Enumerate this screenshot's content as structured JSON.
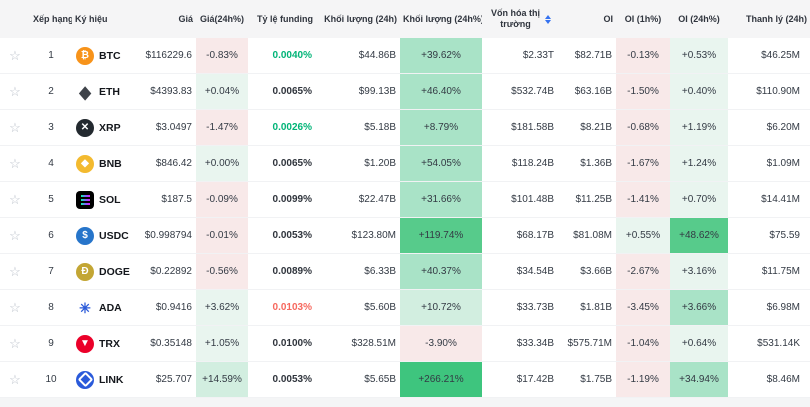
{
  "icons": {
    "star_glyph": "☆"
  },
  "table": {
    "palette": {
      "r1": "#f8e9e9",
      "g1": "#e9f5ef",
      "g2": "#d2eee0",
      "g3": "#a9e3c7",
      "g4": "#57cb8b",
      "g5": "#3ec57e",
      "fundingGreen": "#00b477",
      "fundingRed": "#f6685e",
      "fundingDefault": "#2f343c",
      "sortBlue": "#3572f0"
    },
    "columns": [
      {
        "key": "fav",
        "label": "",
        "align": "ac"
      },
      {
        "key": "rank",
        "label": "Xếp hạng",
        "align": "ac"
      },
      {
        "key": "symbol",
        "label": "Ký hiệu",
        "align": "al"
      },
      {
        "key": "price",
        "label": "Giá",
        "align": "ar"
      },
      {
        "key": "chg24h",
        "label": "Giá(24h%)",
        "align": "ac"
      },
      {
        "key": "funding",
        "label": "Tỷ lệ funding",
        "align": "ar"
      },
      {
        "key": "vol",
        "label": "Khối lượng (24h)",
        "align": "ar"
      },
      {
        "key": "volPct",
        "label": "Khối lượng (24h%)",
        "align": "ac"
      },
      {
        "key": "mcap",
        "label": "Vốn hóa thị trường",
        "align": "ac",
        "sortable": true
      },
      {
        "key": "oi",
        "label": "OI",
        "align": "ar"
      },
      {
        "key": "oi1h",
        "label": "OI (1h%)",
        "align": "ac"
      },
      {
        "key": "oi24h",
        "label": "OI (24h%)",
        "align": "ac"
      },
      {
        "key": "liq",
        "label": "Thanh lý (24h)",
        "align": "ar"
      }
    ],
    "rows": [
      {
        "rank": "1",
        "symbol": "BTC",
        "icon": {
          "name": "btc-icon",
          "type": "glyph",
          "bg": "#F7931A",
          "fg": "#FFFFFF",
          "glyph": "₿"
        },
        "price": "$116229.6",
        "chg24h": {
          "text": "-0.83%",
          "tint": "r1"
        },
        "funding": {
          "text": "0.0040%",
          "color": "green"
        },
        "vol": "$44.86B",
        "volPct": {
          "text": "+39.62%",
          "tint": "g3"
        },
        "mcap": "$2.33T",
        "oi": "$82.71B",
        "oi1h": {
          "text": "-0.13%",
          "tint": "r1"
        },
        "oi24h": {
          "text": "+0.53%",
          "tint": "g1"
        },
        "liq": "$46.25M"
      },
      {
        "rank": "2",
        "symbol": "ETH",
        "icon": {
          "name": "eth-icon",
          "type": "eth",
          "bg": "transparent",
          "fg": "#3f434a",
          "glyph": "◆"
        },
        "price": "$4393.83",
        "chg24h": {
          "text": "+0.04%",
          "tint": "g1"
        },
        "funding": {
          "text": "0.0065%",
          "color": "default"
        },
        "vol": "$99.13B",
        "volPct": {
          "text": "+46.40%",
          "tint": "g3"
        },
        "mcap": "$532.74B",
        "oi": "$63.16B",
        "oi1h": {
          "text": "-1.50%",
          "tint": "r1"
        },
        "oi24h": {
          "text": "+0.40%",
          "tint": "g1"
        },
        "liq": "$110.90M"
      },
      {
        "rank": "3",
        "symbol": "XRP",
        "icon": {
          "name": "xrp-icon",
          "type": "glyph",
          "bg": "#23292F",
          "fg": "#FFFFFF",
          "glyph": "✕"
        },
        "price": "$3.0497",
        "chg24h": {
          "text": "-1.47%",
          "tint": "r1"
        },
        "funding": {
          "text": "0.0026%",
          "color": "green"
        },
        "vol": "$5.18B",
        "volPct": {
          "text": "+8.79%",
          "tint": "g3"
        },
        "mcap": "$181.58B",
        "oi": "$8.21B",
        "oi1h": {
          "text": "-0.68%",
          "tint": "r1"
        },
        "oi24h": {
          "text": "+1.19%",
          "tint": "g1"
        },
        "liq": "$6.20M"
      },
      {
        "rank": "4",
        "symbol": "BNB",
        "icon": {
          "name": "bnb-icon",
          "type": "glyph",
          "bg": "#F3BA2F",
          "fg": "#FFFFFF",
          "glyph": "◆"
        },
        "price": "$846.42",
        "chg24h": {
          "text": "+0.00%",
          "tint": "g1"
        },
        "funding": {
          "text": "0.0065%",
          "color": "default"
        },
        "vol": "$1.20B",
        "volPct": {
          "text": "+54.05%",
          "tint": "g3"
        },
        "mcap": "$118.24B",
        "oi": "$1.36B",
        "oi1h": {
          "text": "-1.67%",
          "tint": "r1"
        },
        "oi24h": {
          "text": "+1.24%",
          "tint": "g1"
        },
        "liq": "$1.09M"
      },
      {
        "rank": "5",
        "symbol": "SOL",
        "icon": {
          "name": "sol-icon",
          "type": "sol",
          "bg": "#000000",
          "fg": "#FFFFFF",
          "glyph": ""
        },
        "price": "$187.5",
        "chg24h": {
          "text": "-0.09%",
          "tint": "r1"
        },
        "funding": {
          "text": "0.0099%",
          "color": "default"
        },
        "vol": "$22.47B",
        "volPct": {
          "text": "+31.66%",
          "tint": "g3"
        },
        "mcap": "$101.48B",
        "oi": "$11.25B",
        "oi1h": {
          "text": "-1.41%",
          "tint": "r1"
        },
        "oi24h": {
          "text": "+0.70%",
          "tint": "g1"
        },
        "liq": "$14.41M"
      },
      {
        "rank": "6",
        "symbol": "USDC",
        "icon": {
          "name": "usdc-icon",
          "type": "glyph",
          "bg": "#2775CA",
          "fg": "#FFFFFF",
          "glyph": "$"
        },
        "price": "$0.998794",
        "chg24h": {
          "text": "-0.01%",
          "tint": "r1"
        },
        "funding": {
          "text": "0.0053%",
          "color": "default"
        },
        "vol": "$123.80M",
        "volPct": {
          "text": "+119.74%",
          "tint": "g4"
        },
        "mcap": "$68.17B",
        "oi": "$81.08M",
        "oi1h": {
          "text": "+0.55%",
          "tint": "g1"
        },
        "oi24h": {
          "text": "+48.62%",
          "tint": "g4"
        },
        "liq": "$75.59"
      },
      {
        "rank": "7",
        "symbol": "DOGE",
        "icon": {
          "name": "doge-icon",
          "type": "glyph",
          "bg": "#C3A634",
          "fg": "#FFFFFF",
          "glyph": "Ð"
        },
        "price": "$0.22892",
        "chg24h": {
          "text": "-0.56%",
          "tint": "r1"
        },
        "funding": {
          "text": "0.0089%",
          "color": "default"
        },
        "vol": "$6.33B",
        "volPct": {
          "text": "+40.37%",
          "tint": "g3"
        },
        "mcap": "$34.54B",
        "oi": "$3.66B",
        "oi1h": {
          "text": "-2.67%",
          "tint": "r1"
        },
        "oi24h": {
          "text": "+3.16%",
          "tint": "g1"
        },
        "liq": "$11.75M"
      },
      {
        "rank": "8",
        "symbol": "ADA",
        "icon": {
          "name": "ada-icon",
          "type": "ada",
          "bg": "transparent",
          "fg": "#2a5ad9",
          "glyph": "✳"
        },
        "price": "$0.9416",
        "chg24h": {
          "text": "+3.62%",
          "tint": "g1"
        },
        "funding": {
          "text": "0.0103%",
          "color": "red"
        },
        "vol": "$5.60B",
        "volPct": {
          "text": "+10.72%",
          "tint": "g2"
        },
        "mcap": "$33.73B",
        "oi": "$1.81B",
        "oi1h": {
          "text": "-3.45%",
          "tint": "r1"
        },
        "oi24h": {
          "text": "+3.66%",
          "tint": "g3"
        },
        "liq": "$6.98M"
      },
      {
        "rank": "9",
        "symbol": "TRX",
        "icon": {
          "name": "trx-icon",
          "type": "glyph",
          "bg": "#EB0029",
          "fg": "#FFFFFF",
          "glyph": "▼"
        },
        "price": "$0.35148",
        "chg24h": {
          "text": "+1.05%",
          "tint": "g1"
        },
        "funding": {
          "text": "0.0100%",
          "color": "default"
        },
        "vol": "$328.51M",
        "volPct": {
          "text": "-3.90%",
          "tint": "r1"
        },
        "mcap": "$33.34B",
        "oi": "$575.71M",
        "oi1h": {
          "text": "-1.04%",
          "tint": "r1"
        },
        "oi24h": {
          "text": "+0.64%",
          "tint": "g1"
        },
        "liq": "$531.14K"
      },
      {
        "rank": "10",
        "symbol": "LINK",
        "icon": {
          "name": "link-icon",
          "type": "ring",
          "bg": "#2A5ADA",
          "fg": "#FFFFFF",
          "glyph": ""
        },
        "price": "$25.707",
        "chg24h": {
          "text": "+14.59%",
          "tint": "g2"
        },
        "funding": {
          "text": "0.0053%",
          "color": "default"
        },
        "vol": "$5.65B",
        "volPct": {
          "text": "+266.21%",
          "tint": "g5"
        },
        "mcap": "$17.42B",
        "oi": "$1.75B",
        "oi1h": {
          "text": "-1.19%",
          "tint": "r1"
        },
        "oi24h": {
          "text": "+34.94%",
          "tint": "g3"
        },
        "liq": "$8.46M"
      }
    ]
  }
}
